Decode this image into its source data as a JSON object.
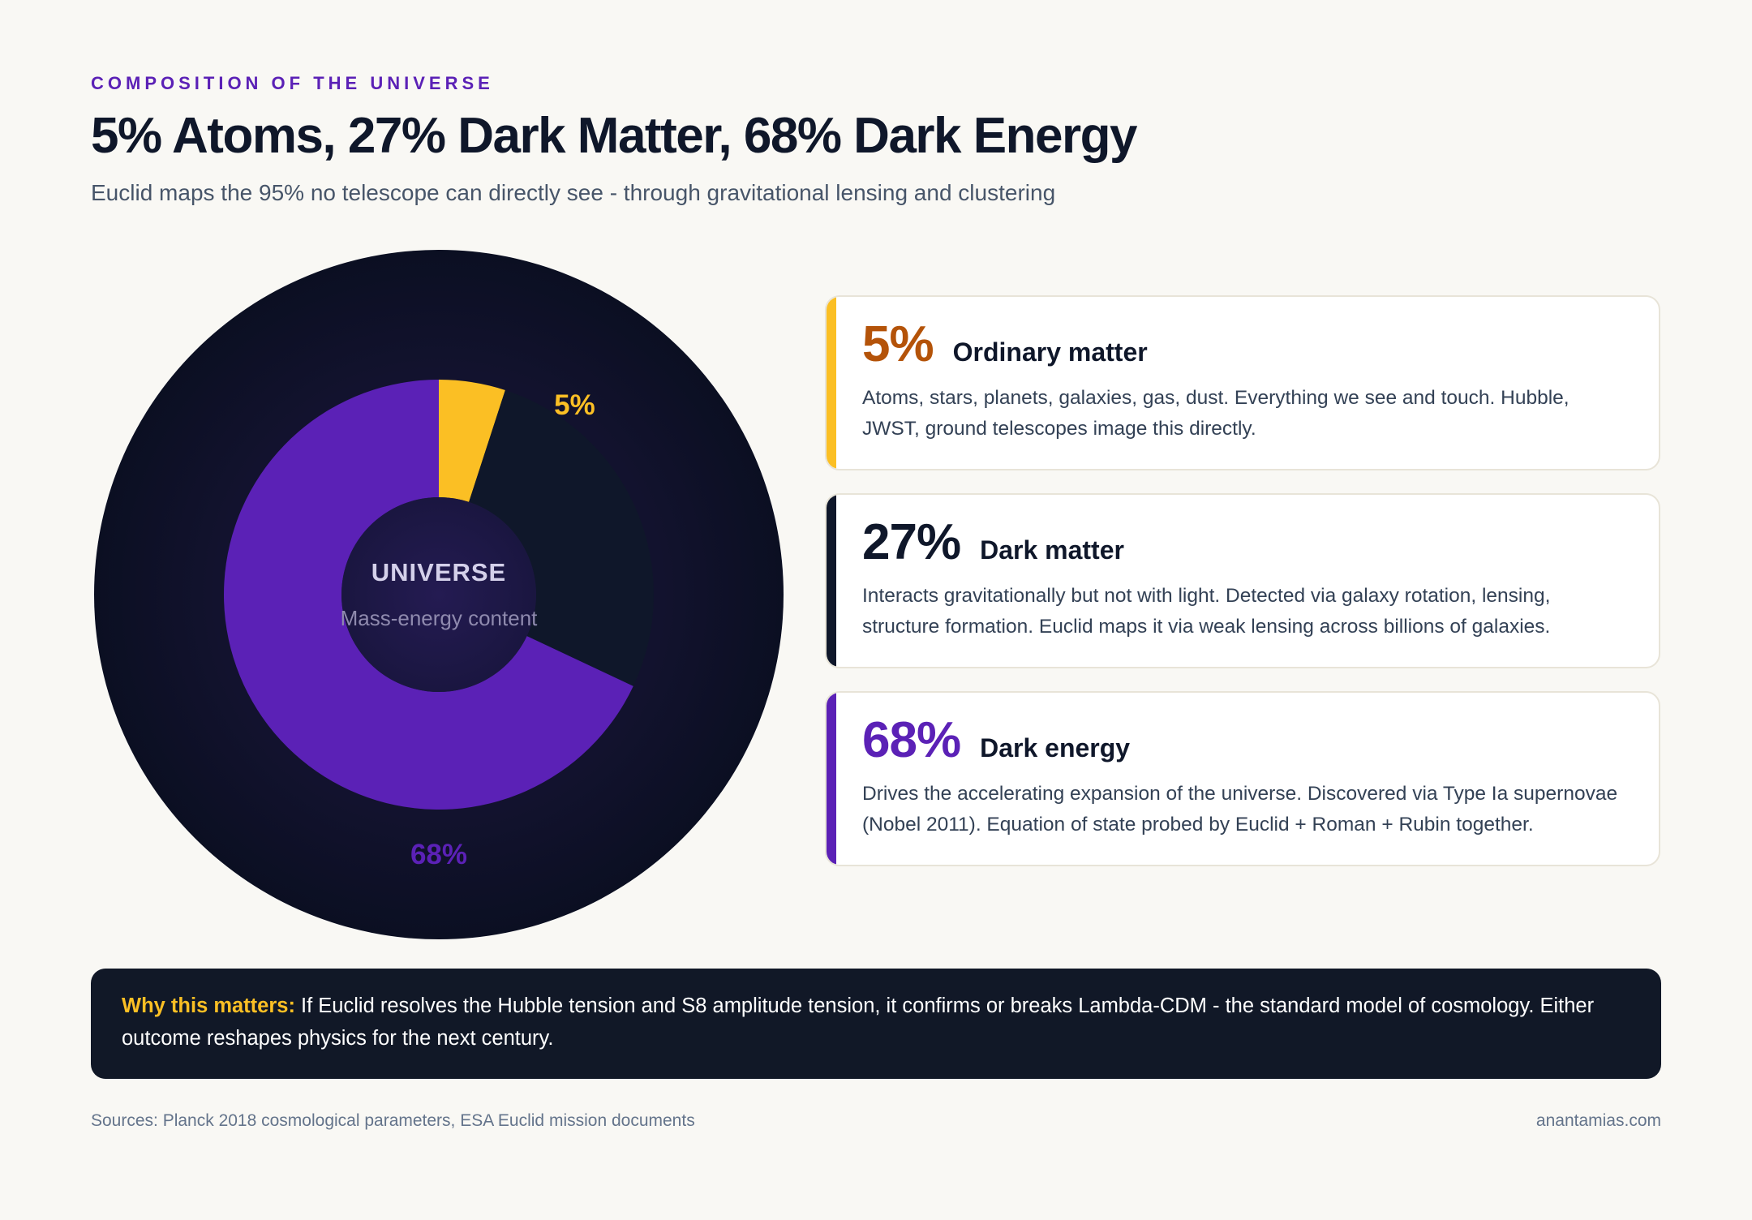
{
  "header": {
    "eyebrow": "COMPOSITION OF THE UNIVERSE",
    "title": "5% Atoms, 27% Dark Matter, 68% Dark Energy",
    "subtitle": "Euclid maps the 95% no telescope can directly see - through gravitational lensing and clustering"
  },
  "chart_data": {
    "type": "pie",
    "center_title": "UNIVERSE",
    "center_subtitle": "Mass-energy content",
    "slices": [
      {
        "label": "5%",
        "value": 5,
        "color": "#fbbf24",
        "label_color": "#fbbf24",
        "label_visible": true
      },
      {
        "label": "27%",
        "value": 27,
        "color": "#0f172a",
        "label_color": "#334155",
        "label_visible": false
      },
      {
        "label": "68%",
        "value": 68,
        "color": "#5b21b6",
        "label_color": "#5b21b6",
        "label_visible": true
      }
    ]
  },
  "cards": [
    {
      "pct": "5%",
      "name": "Ordinary matter",
      "desc": "Atoms, stars, planets, galaxies, gas, dust. Everything we see and touch. Hubble, JWST, ground telescopes image this directly.",
      "accent": "#fbbf24",
      "pct_color": "#b45309"
    },
    {
      "pct": "27%",
      "name": "Dark matter",
      "desc": "Interacts gravitationally but not with light. Detected via galaxy rotation, lensing, structure formation. Euclid maps it via weak lensing across billions of galaxies.",
      "accent": "#0f172a",
      "pct_color": "#0f172a"
    },
    {
      "pct": "68%",
      "name": "Dark energy",
      "desc": "Drives the accelerating expansion of the universe. Discovered via Type Ia supernovae (Nobel 2011). Equation of state probed by Euclid + Roman + Rubin together.",
      "accent": "#5b21b6",
      "pct_color": "#5b21b6"
    }
  ],
  "callout": {
    "lead": "Why this matters:",
    "text": " If Euclid resolves the Hubble tension and S8 amplitude tension, it confirms or breaks Lambda-CDM - the standard model of cosmology. Either outcome reshapes physics for the next century."
  },
  "footer": {
    "sources": "Sources: Planck 2018 cosmological parameters, ESA Euclid mission documents",
    "credit": "anantamias.com"
  }
}
